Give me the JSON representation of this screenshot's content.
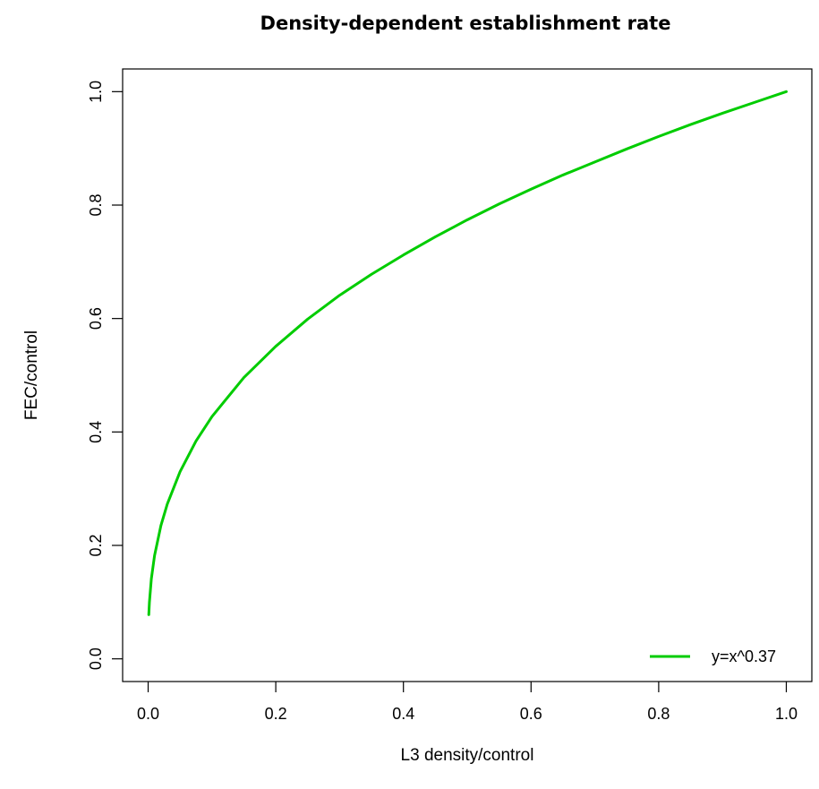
{
  "chart_data": {
    "type": "line",
    "title": "Density-dependent establishment rate",
    "xlabel": "L3 density/control",
    "ylabel": "FEC/control",
    "xlim": [
      -0.04,
      1.04
    ],
    "ylim": [
      -0.04,
      1.04
    ],
    "x_ticks": [
      0.0,
      0.2,
      0.4,
      0.6,
      0.8,
      1.0
    ],
    "y_ticks": [
      0.0,
      0.2,
      0.4,
      0.6,
      0.8,
      1.0
    ],
    "x_tick_labels": [
      "0.0",
      "0.2",
      "0.4",
      "0.6",
      "0.8",
      "1.0"
    ],
    "y_tick_labels": [
      "0.0",
      "0.2",
      "0.4",
      "0.6",
      "0.8",
      "1.0"
    ],
    "grid": false,
    "legend_position": "bottom-right",
    "series": [
      {
        "name": "y=x^0.37",
        "color": "#00cc00",
        "x": [
          0.001,
          0.002,
          0.005,
          0.01,
          0.02,
          0.03,
          0.05,
          0.075,
          0.1,
          0.15,
          0.2,
          0.25,
          0.3,
          0.35,
          0.4,
          0.45,
          0.5,
          0.55,
          0.6,
          0.65,
          0.7,
          0.75,
          0.8,
          0.85,
          0.9,
          0.95,
          1.0
        ],
        "y": [
          0.078,
          0.1,
          0.141,
          0.182,
          0.235,
          0.273,
          0.33,
          0.384,
          0.427,
          0.496,
          0.551,
          0.599,
          0.641,
          0.678,
          0.712,
          0.744,
          0.774,
          0.802,
          0.828,
          0.853,
          0.876,
          0.899,
          0.921,
          0.942,
          0.962,
          0.981,
          1.0
        ]
      }
    ]
  }
}
